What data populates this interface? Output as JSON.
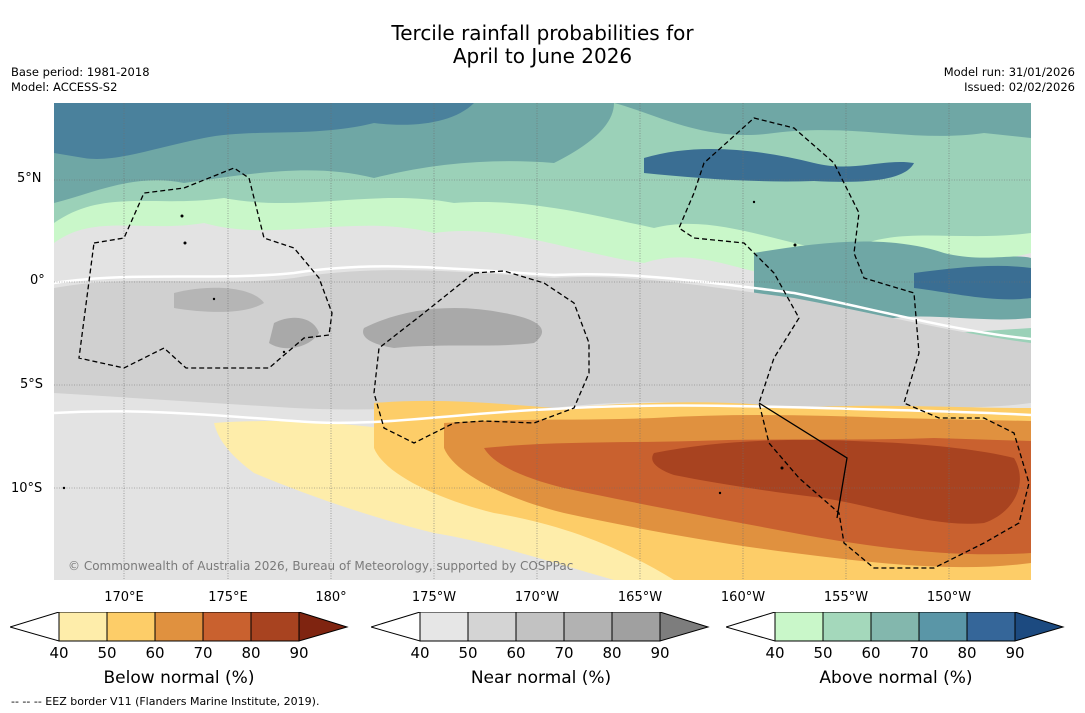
{
  "title_line1": "Tercile rainfall probabilities for",
  "title_line2": "April to June 2026",
  "base_period": "Base period: 1981-2018",
  "model": "Model: ACCESS-S2",
  "model_run": "Model run: 31/01/2026",
  "issued": "Issued: 02/02/2026",
  "latitude_labels": [
    "5°N",
    "0°",
    "5°S",
    "10°S"
  ],
  "longitude_labels": [
    "170°E",
    "175°E",
    "180°",
    "175°W",
    "170°W",
    "165°W",
    "160°W",
    "155°W",
    "150°W"
  ],
  "copyright": "© Commonwealth of Australia 2026, Bureau of Meteorology, supported by COSPPac",
  "footnote": "--  --  -- EEZ border V11 (Flanders Marine Institute, 2019).",
  "colorbars": [
    {
      "label": "Below normal (%)",
      "ticks": [
        "40",
        "50",
        "60",
        "70",
        "80",
        "90"
      ],
      "colors": [
        "#ffffff",
        "#feedaa",
        "#fdcd68",
        "#e0913f",
        "#c9612f",
        "#a84320",
        "#7f2410"
      ]
    },
    {
      "label": "Near normal (%)",
      "ticks": [
        "40",
        "50",
        "60",
        "70",
        "80",
        "90"
      ],
      "colors": [
        "#ffffff",
        "#e6e6e6",
        "#d4d4d4",
        "#c2c2c2",
        "#b2b2b2",
        "#a0a0a0",
        "#7d7d7d"
      ]
    },
    {
      "label": "Above normal (%)",
      "ticks": [
        "40",
        "50",
        "60",
        "70",
        "80",
        "90"
      ],
      "colors": [
        "#ffffff",
        "#c9f7c9",
        "#a4d8bb",
        "#83b7ad",
        "#5a96a7",
        "#356699",
        "#1c4a80"
      ]
    }
  ],
  "colors": {
    "near_light": "#e3e3e3",
    "near_mid": "#d0d0d0",
    "near_dark": "#a9a9a9",
    "above_light": "#c9f7c9",
    "above_mid": "#9bd1b8",
    "above_teal": "#6fa7a5",
    "above_dark": "#4a819c",
    "above_blue": "#3a6e93",
    "below_light": "#feedaa",
    "below_mid": "#fdcd68",
    "below_orange": "#e0913f",
    "below_dark": "#c9612f",
    "below_deep": "#a84320"
  }
}
